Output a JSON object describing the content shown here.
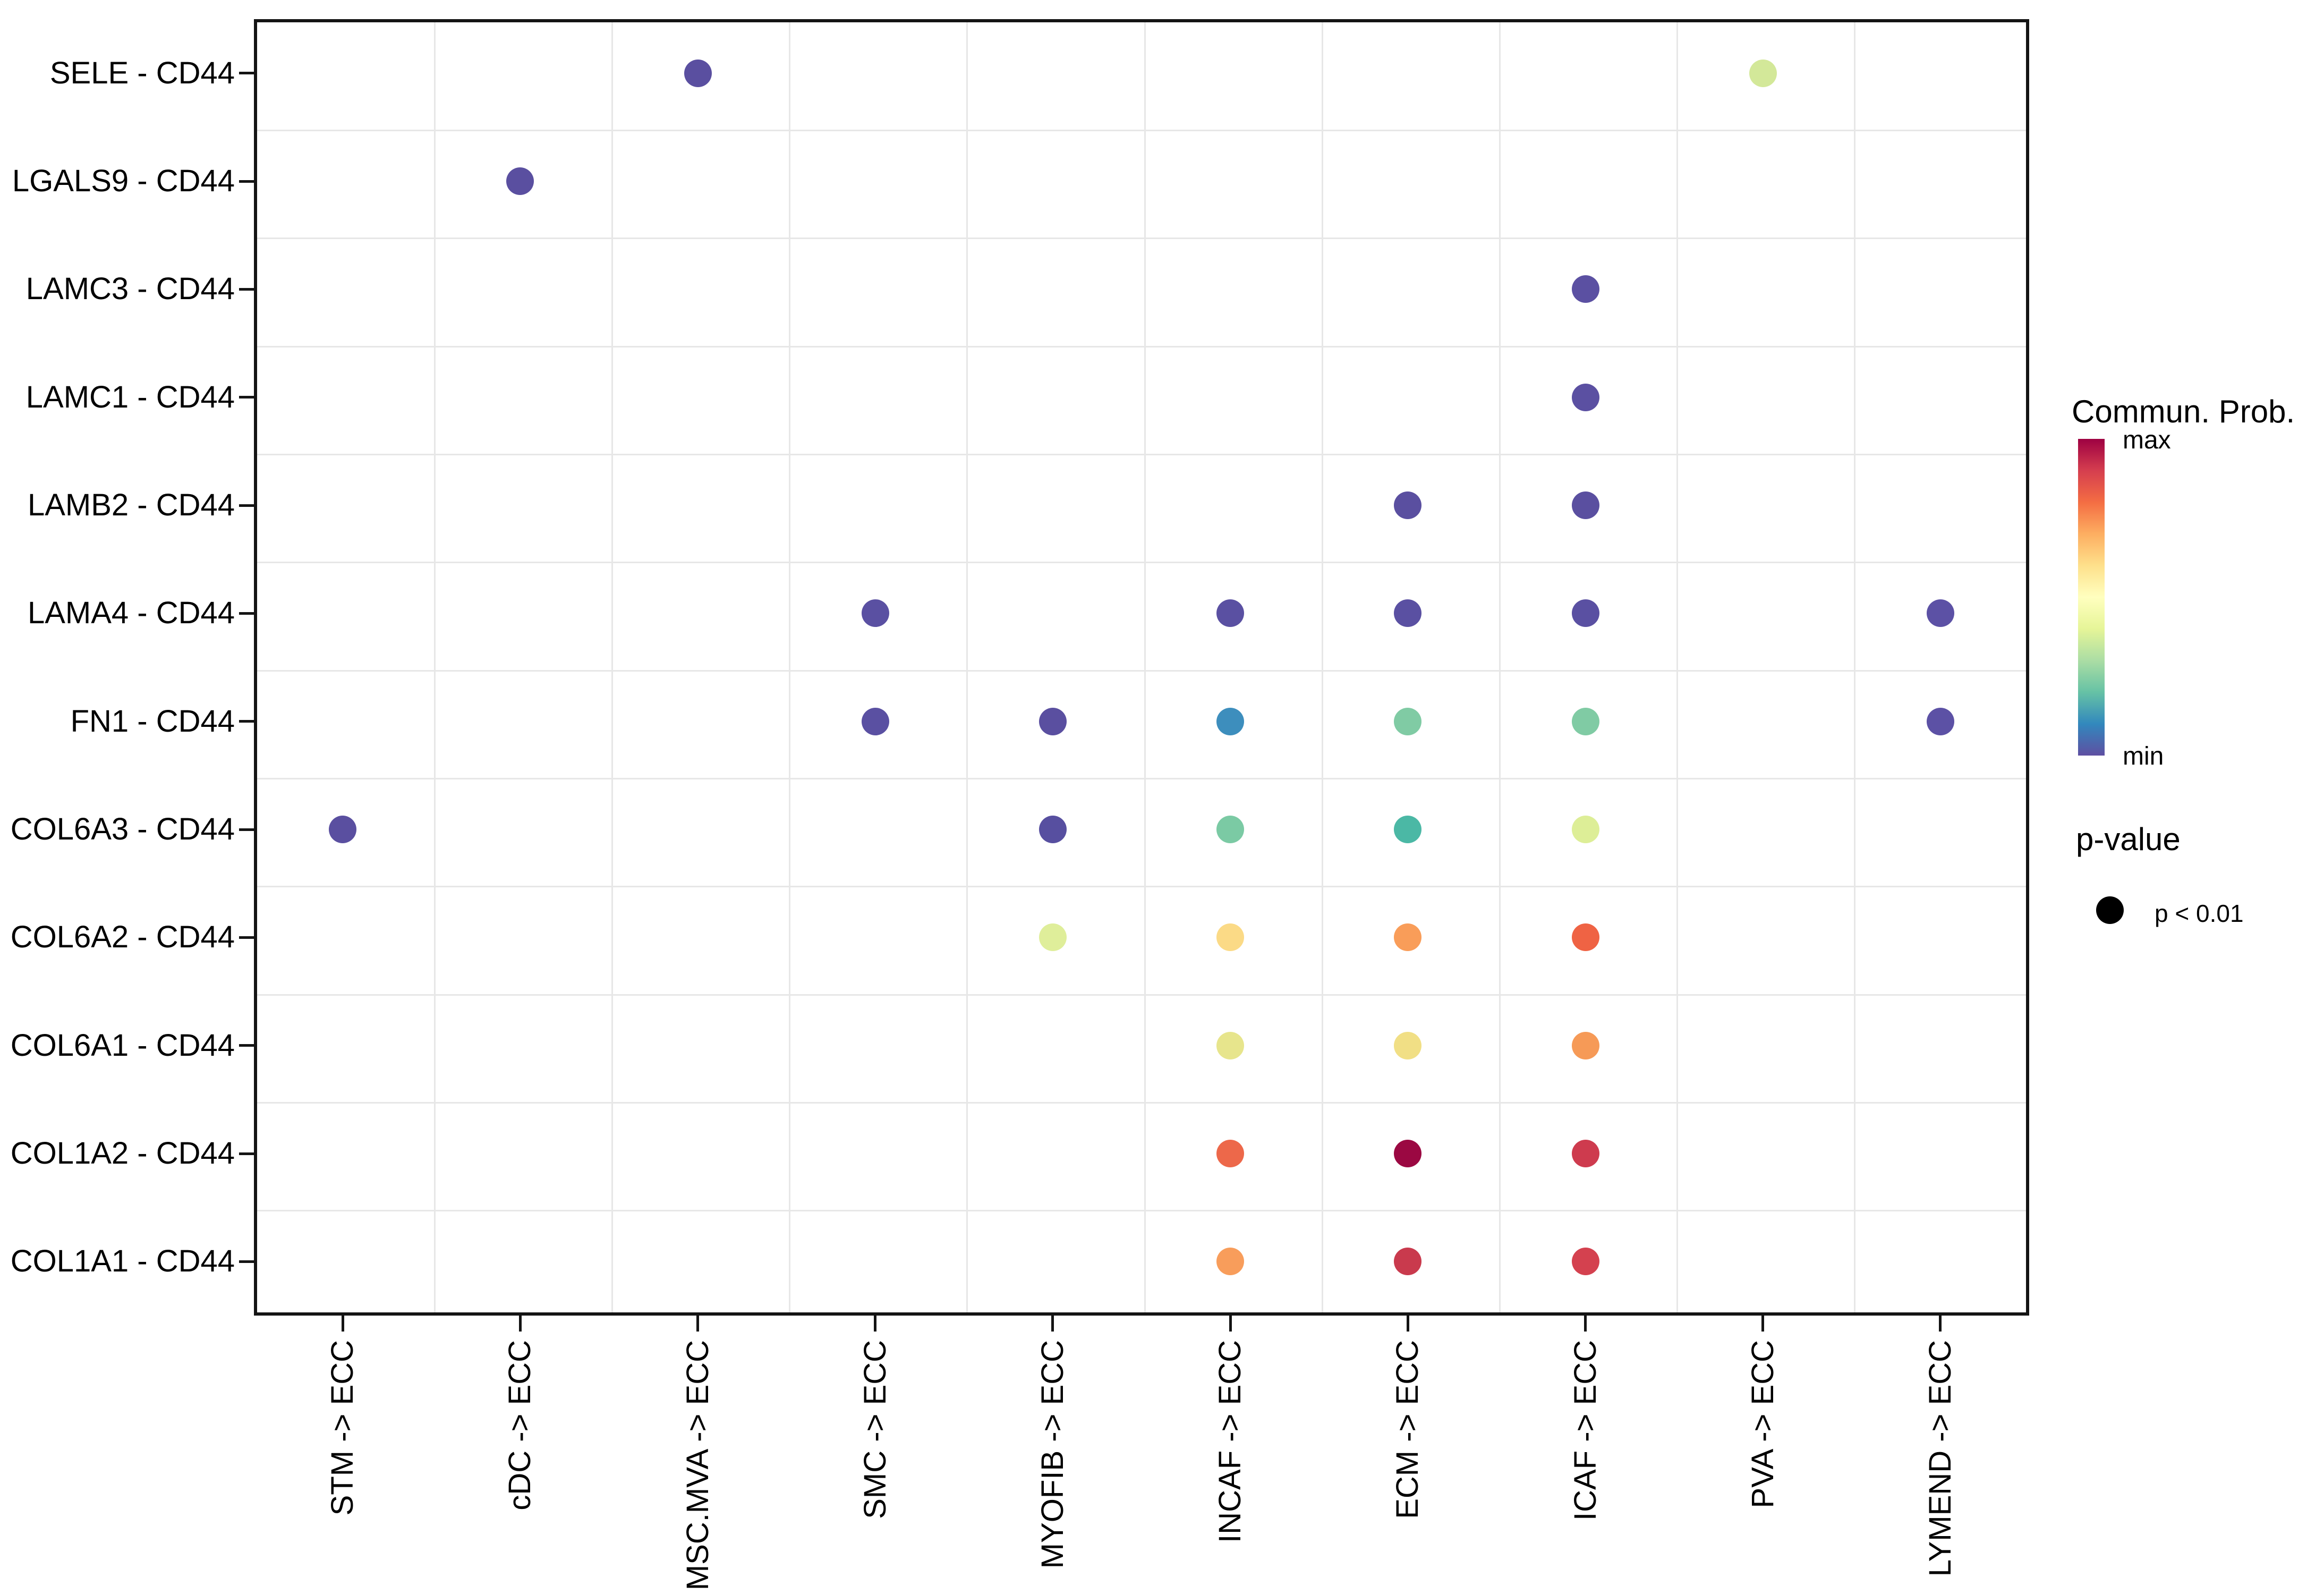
{
  "chart_data": {
    "type": "scatter",
    "subtype": "categorical-bubble-dotplot (cell-cell communication)",
    "title": "",
    "xlabel": "",
    "ylabel": "",
    "grid": "on",
    "x_categories": [
      "STM -> ECC",
      "cDC -> ECC",
      "MSC.MVA -> ECC",
      "SMC -> ECC",
      "MYOFIB -> ECC",
      "INCAF -> ECC",
      "ECM -> ECC",
      "ICAF -> ECC",
      "PVA -> ECC",
      "LYMEND -> ECC"
    ],
    "y_categories": [
      "SELE - CD44",
      "LGALS9 - CD44",
      "LAMC3 - CD44",
      "LAMC1 - CD44",
      "LAMB2 - CD44",
      "LAMA4 - CD44",
      "FN1 - CD44",
      "COL6A3 - CD44",
      "COL6A2 - CD44",
      "COL6A1 - CD44",
      "COL1A2 - CD44",
      "COL1A1 - CD44"
    ],
    "color_encodes": "communication probability (min to max)",
    "points": [
      {
        "y": "SELE - CD44",
        "x": "MSC.MVA -> ECC",
        "color": "#5A4FA0",
        "p": "p < 0.01"
      },
      {
        "y": "SELE - CD44",
        "x": "PVA -> ECC",
        "color": "#D3E899",
        "p": "p < 0.01"
      },
      {
        "y": "LGALS9 - CD44",
        "x": "cDC -> ECC",
        "color": "#5A4FA0",
        "p": "p < 0.01"
      },
      {
        "y": "LAMC3 - CD44",
        "x": "ICAF -> ECC",
        "color": "#5B50A2",
        "p": "p < 0.01"
      },
      {
        "y": "LAMC1 - CD44",
        "x": "ICAF -> ECC",
        "color": "#5B50A2",
        "p": "p < 0.01"
      },
      {
        "y": "LAMB2 - CD44",
        "x": "ECM -> ECC",
        "color": "#5A4FA0",
        "p": "p < 0.01"
      },
      {
        "y": "LAMB2 - CD44",
        "x": "ICAF -> ECC",
        "color": "#5A4FA0",
        "p": "p < 0.01"
      },
      {
        "y": "LAMA4 - CD44",
        "x": "SMC -> ECC",
        "color": "#5A50A2",
        "p": "p < 0.01"
      },
      {
        "y": "LAMA4 - CD44",
        "x": "INCAF -> ECC",
        "color": "#5A50A2",
        "p": "p < 0.01"
      },
      {
        "y": "LAMA4 - CD44",
        "x": "ECM -> ECC",
        "color": "#5A50A2",
        "p": "p < 0.01"
      },
      {
        "y": "LAMA4 - CD44",
        "x": "ICAF -> ECC",
        "color": "#5A50A2",
        "p": "p < 0.01"
      },
      {
        "y": "LAMA4 - CD44",
        "x": "LYMEND -> ECC",
        "color": "#5C51A5",
        "p": "p < 0.01"
      },
      {
        "y": "FN1 - CD44",
        "x": "SMC -> ECC",
        "color": "#5A50A2",
        "p": "p < 0.01"
      },
      {
        "y": "FN1 - CD44",
        "x": "MYOFIB -> ECC",
        "color": "#5A4FA0",
        "p": "p < 0.01"
      },
      {
        "y": "FN1 - CD44",
        "x": "INCAF -> ECC",
        "color": "#3D8EBD",
        "p": "p < 0.01"
      },
      {
        "y": "FN1 - CD44",
        "x": "ECM -> ECC",
        "color": "#80CBA4",
        "p": "p < 0.01"
      },
      {
        "y": "FN1 - CD44",
        "x": "ICAF -> ECC",
        "color": "#80CBA4",
        "p": "p < 0.01"
      },
      {
        "y": "FN1 - CD44",
        "x": "LYMEND -> ECC",
        "color": "#5C51A5",
        "p": "p < 0.01"
      },
      {
        "y": "COL6A3 - CD44",
        "x": "STM -> ECC",
        "color": "#5A4FA0",
        "p": "p < 0.01"
      },
      {
        "y": "COL6A3 - CD44",
        "x": "MYOFIB -> ECC",
        "color": "#574FA0",
        "p": "p < 0.01"
      },
      {
        "y": "COL6A3 - CD44",
        "x": "INCAF -> ECC",
        "color": "#7BCAA4",
        "p": "p < 0.01"
      },
      {
        "y": "COL6A3 - CD44",
        "x": "ECM -> ECC",
        "color": "#4BB8A5",
        "p": "p < 0.01"
      },
      {
        "y": "COL6A3 - CD44",
        "x": "ICAF -> ECC",
        "color": "#DDEE97",
        "p": "p < 0.01"
      },
      {
        "y": "COL6A2 - CD44",
        "x": "MYOFIB -> ECC",
        "color": "#DFEE9A",
        "p": "p < 0.01"
      },
      {
        "y": "COL6A2 - CD44",
        "x": "INCAF -> ECC",
        "color": "#FBDA86",
        "p": "p < 0.01"
      },
      {
        "y": "COL6A2 - CD44",
        "x": "ECM -> ECC",
        "color": "#F99D59",
        "p": "p < 0.01"
      },
      {
        "y": "COL6A2 - CD44",
        "x": "ICAF -> ECC",
        "color": "#EF6344",
        "p": "p < 0.01"
      },
      {
        "y": "COL6A1 - CD44",
        "x": "INCAF -> ECC",
        "color": "#E7E58C",
        "p": "p < 0.01"
      },
      {
        "y": "COL6A1 - CD44",
        "x": "ECM -> ECC",
        "color": "#F1DF85",
        "p": "p < 0.01"
      },
      {
        "y": "COL6A1 - CD44",
        "x": "ICAF -> ECC",
        "color": "#F69A57",
        "p": "p < 0.01"
      },
      {
        "y": "COL1A2 - CD44",
        "x": "INCAF -> ECC",
        "color": "#ED684A",
        "p": "p < 0.01"
      },
      {
        "y": "COL1A2 - CD44",
        "x": "ECM -> ECC",
        "color": "#9B0842",
        "p": "p < 0.01"
      },
      {
        "y": "COL1A2 - CD44",
        "x": "ICAF -> ECC",
        "color": "#CE3B4E",
        "p": "p < 0.01"
      },
      {
        "y": "COL1A1 - CD44",
        "x": "INCAF -> ECC",
        "color": "#F89D5B",
        "p": "p < 0.01"
      },
      {
        "y": "COL1A1 - CD44",
        "x": "ECM -> ECC",
        "color": "#C93A4D",
        "p": "p < 0.01"
      },
      {
        "y": "COL1A1 - CD44",
        "x": "ICAF -> ECC",
        "color": "#D4414F",
        "p": "p < 0.01"
      }
    ],
    "legend": {
      "position": "right",
      "colorbar": {
        "title": "Commun. Prob.",
        "max_label": "max",
        "min_label": "min",
        "stops_top_to_bottom": [
          "#9E0142",
          "#D53E4F",
          "#F46D43",
          "#FDAE61",
          "#FEE08B",
          "#FFFFBF",
          "#E6F598",
          "#ABDDA4",
          "#66C2A5",
          "#3288BD",
          "#5E4FA2"
        ]
      },
      "pvalue": {
        "title": "p-value",
        "item_label": "p < 0.01",
        "dot_color": "#000000"
      }
    }
  }
}
